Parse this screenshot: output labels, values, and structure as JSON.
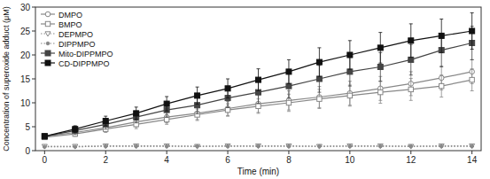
{
  "chart_data": {
    "type": "line",
    "xlabel": "Time (min)",
    "ylabel": "Concentration of superoxide adduct (μM)",
    "xlim": [
      -0.3,
      14.3
    ],
    "ylim": [
      0,
      30
    ],
    "xticks": [
      0,
      2,
      4,
      6,
      8,
      10,
      12,
      14
    ],
    "yticks": [
      0,
      5,
      10,
      15,
      20,
      25,
      30
    ],
    "grid": false,
    "legend": "upper left",
    "x": [
      0,
      1,
      2,
      3,
      4,
      5,
      6,
      7,
      8,
      9,
      10,
      11,
      12,
      13,
      14
    ],
    "series": [
      {
        "name": "DMPO",
        "color": "#888888",
        "marker": "open-circle",
        "line_style": "solid",
        "values": [
          3.0,
          3.8,
          4.8,
          6.0,
          7.0,
          7.8,
          8.8,
          9.8,
          10.5,
          11.2,
          12.0,
          13.0,
          14.0,
          15.2,
          16.5
        ],
        "errors": [
          0.4,
          0.6,
          0.8,
          1.0,
          1.2,
          1.3,
          1.5,
          1.8,
          2.0,
          2.2,
          2.5,
          2.5,
          2.5,
          2.5,
          2.5
        ]
      },
      {
        "name": "BMPO",
        "color": "#888888",
        "marker": "open-square",
        "line_style": "solid",
        "values": [
          2.8,
          3.5,
          4.5,
          5.5,
          6.5,
          7.5,
          8.5,
          9.3,
          10.0,
          10.8,
          11.5,
          12.2,
          12.8,
          13.5,
          14.8
        ],
        "errors": [
          0.3,
          0.5,
          0.7,
          0.9,
          1.0,
          1.2,
          1.3,
          1.5,
          1.8,
          2.0,
          2.2,
          2.3,
          2.3,
          2.3,
          2.3
        ]
      },
      {
        "name": "DEPMPO",
        "color": "#888888",
        "marker": "open-triangle-down",
        "line_style": "dotted",
        "values": [
          0.9,
          0.9,
          1.0,
          1.0,
          1.0,
          0.9,
          1.0,
          1.0,
          1.0,
          0.9,
          1.0,
          1.0,
          0.9,
          1.0,
          1.0
        ],
        "errors": [
          0.1,
          0.1,
          0.1,
          0.1,
          0.1,
          0.1,
          0.1,
          0.1,
          0.1,
          0.1,
          0.1,
          0.1,
          0.1,
          0.1,
          0.1
        ]
      },
      {
        "name": "DIPPMPO",
        "color": "#888888",
        "marker": "point",
        "line_style": "dotted",
        "values": [
          0.8,
          0.8,
          0.9,
          0.9,
          0.9,
          0.9,
          0.9,
          0.9,
          0.9,
          0.9,
          0.9,
          0.9,
          0.9,
          0.9,
          0.9
        ],
        "errors": [
          0.05,
          0.05,
          0.05,
          0.05,
          0.05,
          0.05,
          0.05,
          0.05,
          0.05,
          0.05,
          0.05,
          0.05,
          0.05,
          0.05,
          0.05
        ]
      },
      {
        "name": "Mito-DIPPMPO",
        "color": "#444444",
        "marker": "square",
        "line_style": "solid",
        "values": [
          3.0,
          4.2,
          5.5,
          7.0,
          8.5,
          9.5,
          11.0,
          12.2,
          13.5,
          15.0,
          16.5,
          17.5,
          19.0,
          21.0,
          22.5
        ],
        "errors": [
          0.5,
          0.8,
          1.0,
          1.2,
          1.5,
          1.8,
          2.0,
          2.3,
          2.5,
          2.8,
          3.0,
          3.0,
          3.2,
          3.5,
          3.5
        ]
      },
      {
        "name": "CD-DIPPMPO",
        "color": "#111111",
        "marker": "square",
        "line_style": "solid",
        "values": [
          3.0,
          4.5,
          6.2,
          7.8,
          9.8,
          11.5,
          13.0,
          14.8,
          16.5,
          18.5,
          20.0,
          21.5,
          23.0,
          24.0,
          25.0
        ],
        "errors": [
          0.4,
          0.7,
          1.0,
          1.3,
          1.5,
          1.8,
          2.0,
          2.3,
          2.5,
          3.0,
          3.0,
          3.2,
          3.5,
          3.5,
          3.8
        ]
      }
    ]
  }
}
